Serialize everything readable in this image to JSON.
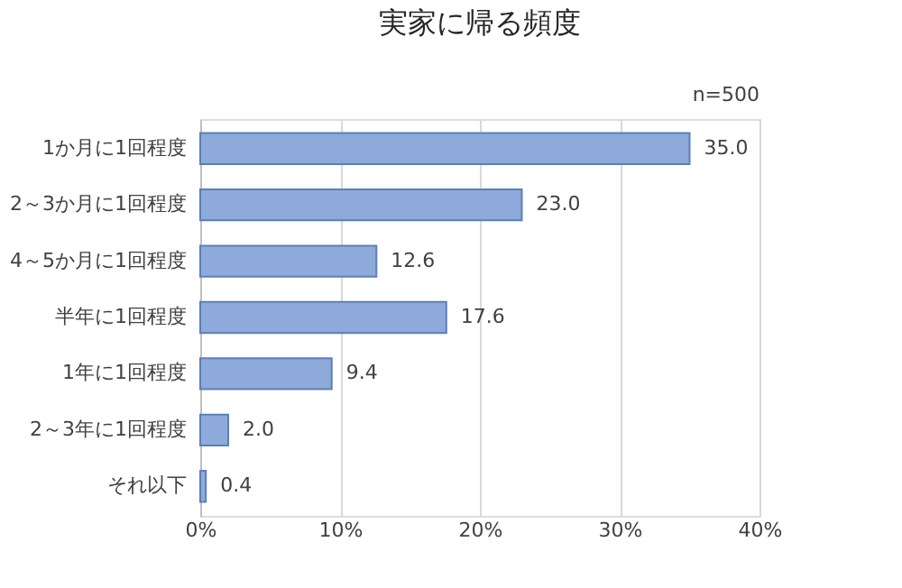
{
  "chart_data": {
    "type": "bar",
    "orientation": "horizontal",
    "title": "実家に帰る頻度",
    "annotations": [
      "n=500"
    ],
    "categories": [
      "1か月に1回程度",
      "2～3か月に1回程度",
      "4～5か月に1回程度",
      "半年に1回程度",
      "1年に1回程度",
      "2～3年に1回程度",
      "それ以下"
    ],
    "values": [
      35.0,
      23.0,
      12.6,
      17.6,
      9.4,
      2.0,
      0.4
    ],
    "value_labels": [
      "35.0",
      "23.0",
      "12.6",
      "17.6",
      "9.4",
      "2.0",
      "0.4"
    ],
    "color": "#8eaadb",
    "xlim": [
      0,
      40
    ],
    "xticks": [
      {
        "value": 0,
        "label": "0%"
      },
      {
        "value": 10,
        "label": "10%"
      },
      {
        "value": 20,
        "label": "20%"
      },
      {
        "value": 30,
        "label": "30%"
      },
      {
        "value": 40,
        "label": "40%"
      }
    ],
    "grid": "x"
  }
}
